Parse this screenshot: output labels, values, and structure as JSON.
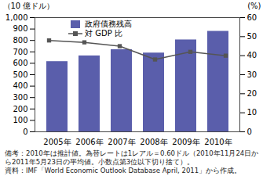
{
  "chart_data": {
    "type": "bar",
    "y_label": "（10 億ドル）",
    "y2_label": "(%)",
    "categories": [
      "2005年",
      "2006年",
      "2007年",
      "2008年",
      "2009年",
      "2010年"
    ],
    "series": [
      {
        "name": "政府債務残高",
        "type": "bar",
        "color": "#5a5eab",
        "values": [
          615,
          665,
          720,
          690,
          805,
          880
        ]
      },
      {
        "name": "対 GDP 比",
        "type": "line",
        "axis": "y2",
        "color": "#555555",
        "marker": "square",
        "values": [
          48,
          47,
          45,
          38,
          42,
          40
        ]
      }
    ],
    "ylim": [
      0,
      1000
    ],
    "yticks": [
      0,
      100,
      200,
      300,
      400,
      500,
      600,
      700,
      800,
      900,
      {
        "value": 1000,
        "label": "1,000"
      }
    ],
    "y2lim": [
      0,
      60
    ],
    "y2ticks": [
      0,
      10,
      20,
      30,
      40,
      50,
      60
    ],
    "grid": false,
    "legend": "top-left",
    "notes": [
      "備考：2010年は推計値。為替レートは1レアル＝0.60ドル（2010年11月24日から2011年5月23日の平均値。小数点第3位以下切り捨て）。",
      "資料：IMF「World Economic Outlook Database April, 2011」から作成。"
    ]
  }
}
